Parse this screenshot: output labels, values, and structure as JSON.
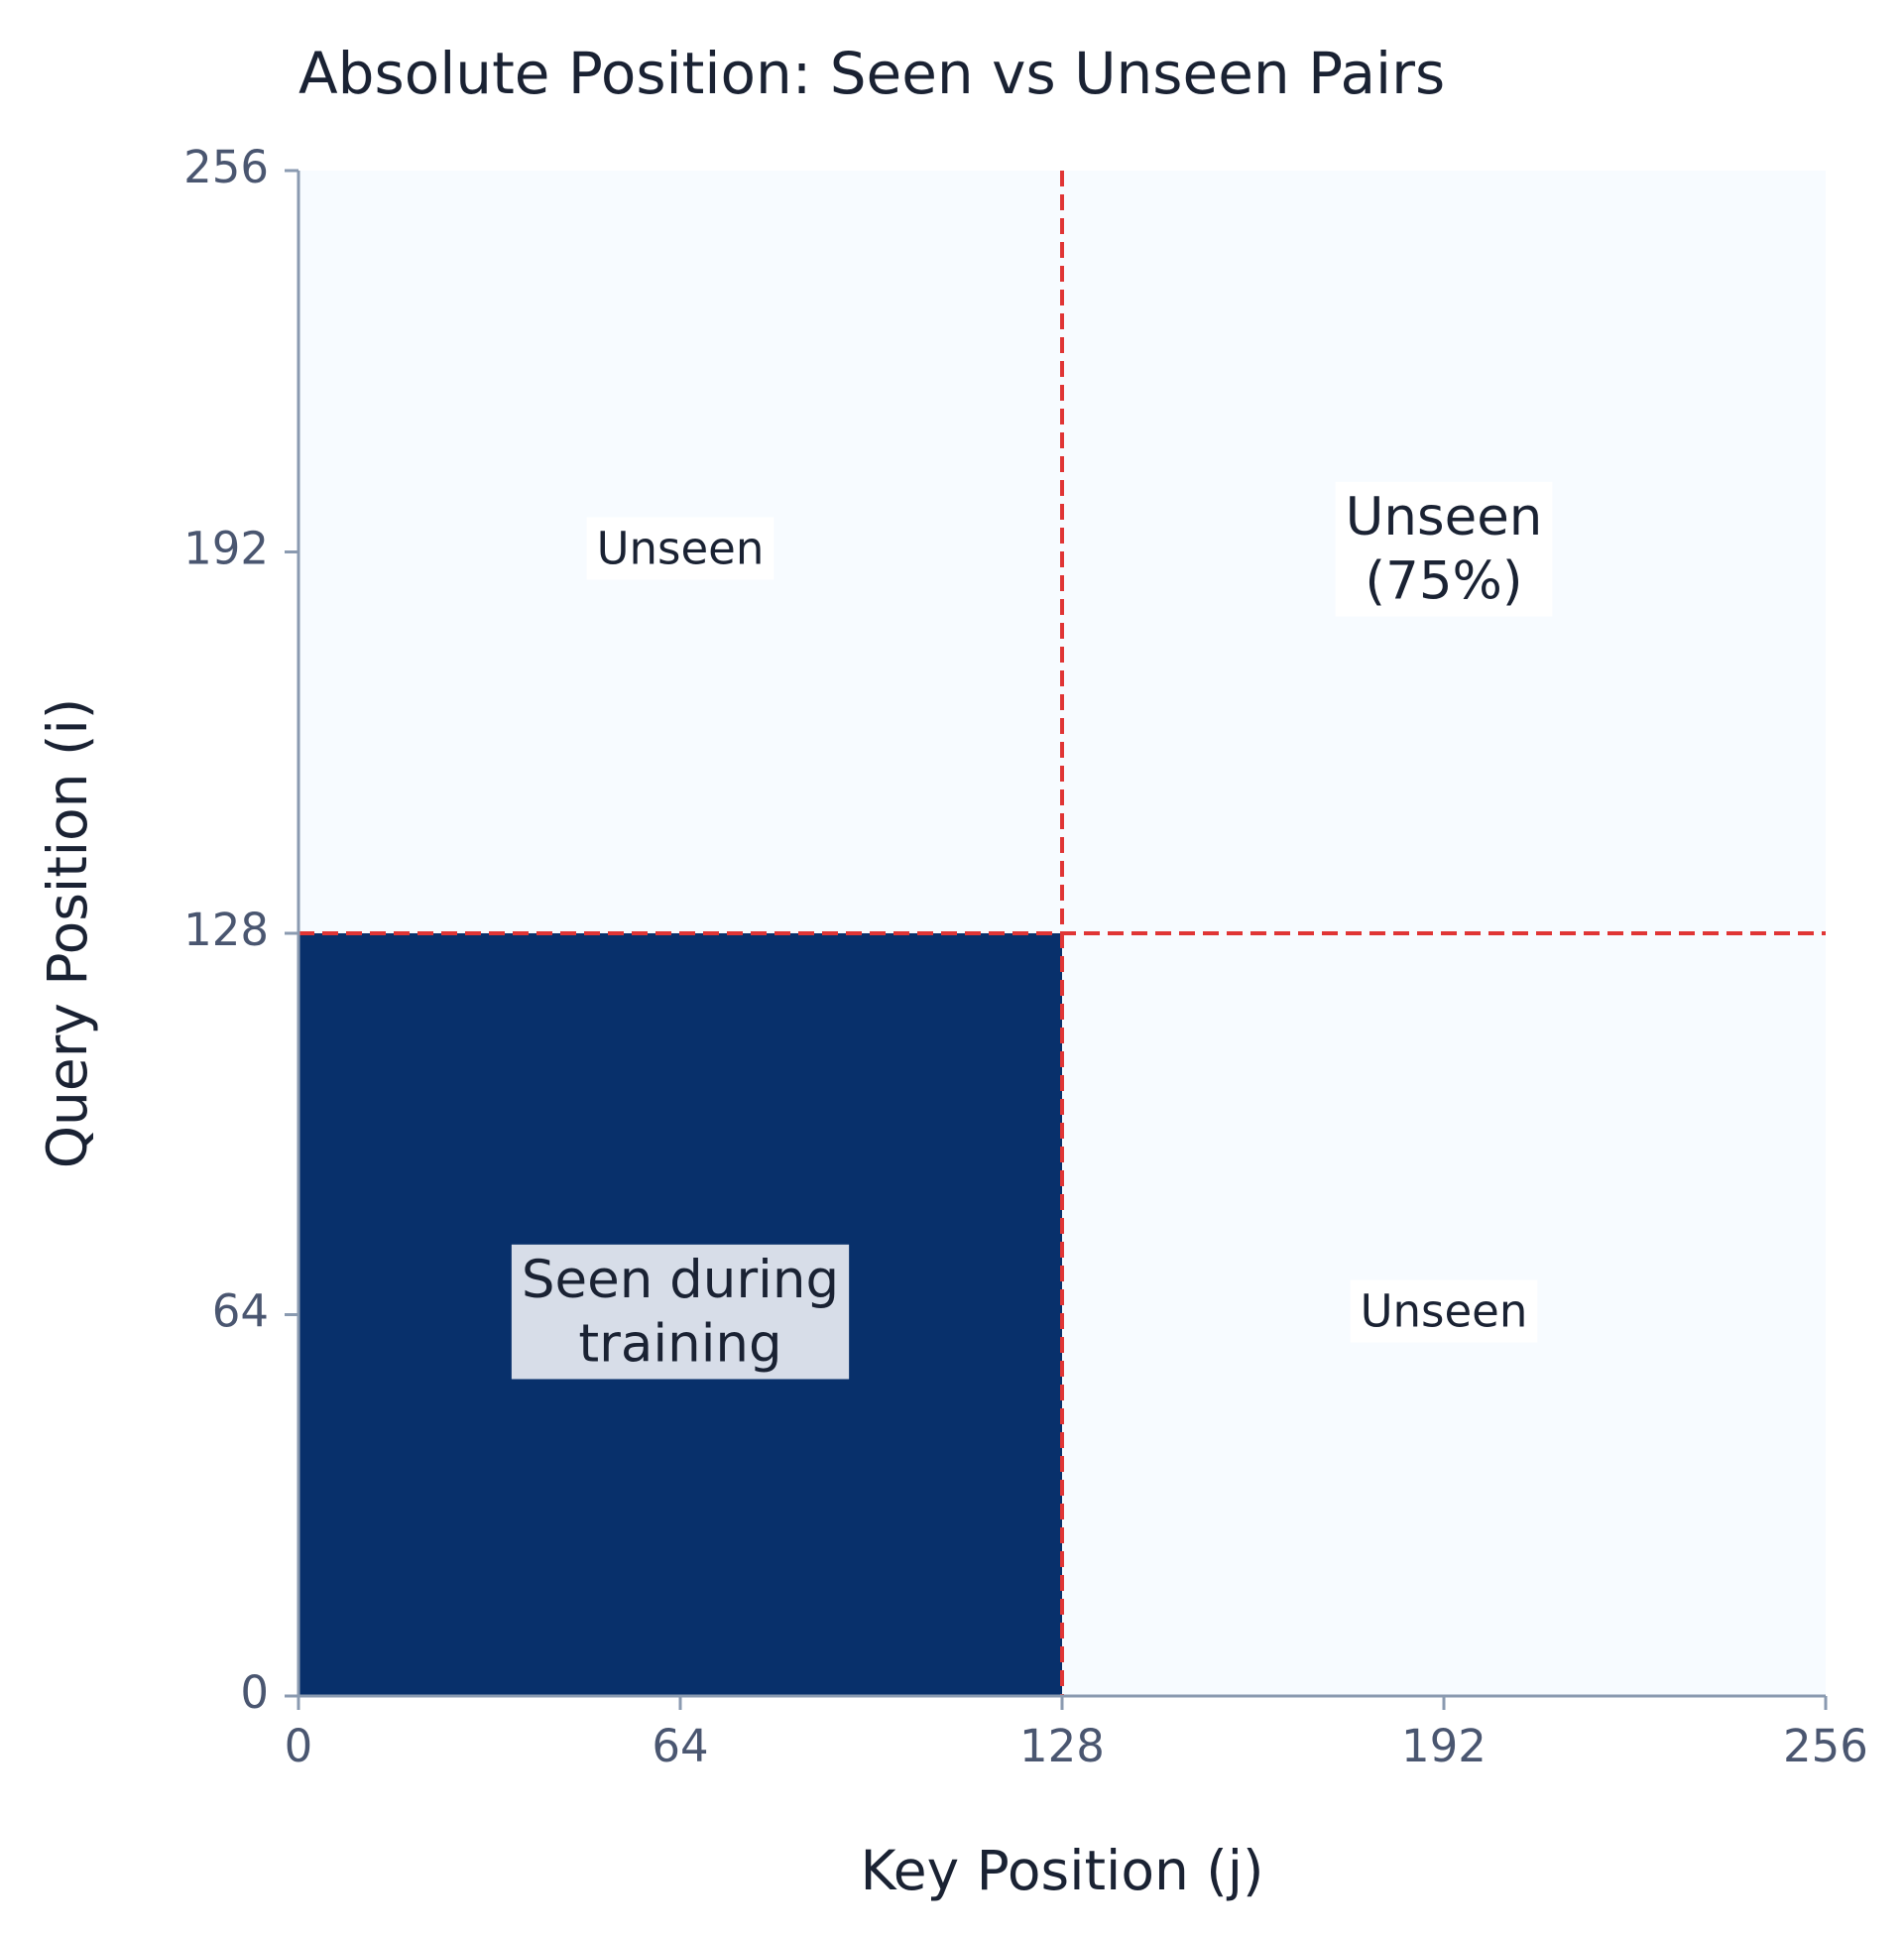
{
  "chart_data": {
    "type": "heatmap",
    "title": "Absolute Position: Seen vs Unseen Pairs",
    "xlabel": "Key Position (j)",
    "ylabel": "Query Position (i)",
    "xlim": [
      0,
      256
    ],
    "ylim": [
      0,
      256
    ],
    "xticks": [
      0,
      64,
      128,
      192,
      256
    ],
    "yticks": [
      0,
      64,
      128,
      192,
      256
    ],
    "background_color": "#f7fbff",
    "regions": [
      {
        "x": [
          0,
          128
        ],
        "y": [
          0,
          128
        ],
        "color": "#08306b"
      }
    ],
    "reference_lines": [
      {
        "axis": "x",
        "value": 128,
        "color": "#e03535"
      },
      {
        "axis": "y",
        "value": 128,
        "color": "#e03535"
      }
    ],
    "annotations": [
      {
        "text": [
          "Seen during",
          "training"
        ],
        "x": 64,
        "y": 64,
        "box_color": "#e9edf3"
      },
      {
        "text": [
          "Unseen"
        ],
        "x": 64,
        "y": 192,
        "box_color": "#ffffff"
      },
      {
        "text": [
          "Unseen",
          "(75%)"
        ],
        "x": 192,
        "y": 192,
        "box_color": "#ffffff"
      },
      {
        "text": [
          "Unseen"
        ],
        "x": 192,
        "y": 64,
        "box_color": "#ffffff"
      }
    ]
  }
}
